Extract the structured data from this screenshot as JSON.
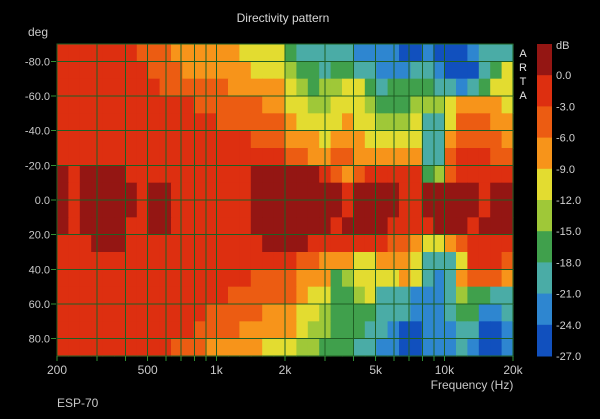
{
  "chart_data": {
    "type": "heatmap",
    "title": "Directivity pattern",
    "xlabel": "Frequency (Hz)",
    "ylabel": "deg",
    "device_label": "ESP-70",
    "watermark": "ARTA",
    "freq_range": [
      200,
      20000
    ],
    "angle_range": [
      -90,
      90
    ],
    "x_scale": "log",
    "grid": true,
    "colors": {
      "background": "#000000",
      "grid": "#1f5f23",
      "tick": "#2f9132",
      "text": "#c9c9c9",
      "plot_border": "#1f5f23"
    },
    "x_gridlines": [
      300,
      400,
      500,
      600,
      700,
      800,
      900,
      1000,
      2000,
      3000,
      4000,
      5000,
      6000,
      7000,
      8000,
      9000,
      10000
    ],
    "x_tick_marks": [
      200,
      300,
      400,
      500,
      600,
      700,
      800,
      900,
      1000,
      2000,
      3000,
      4000,
      5000,
      6000,
      7000,
      8000,
      9000,
      10000,
      20000
    ],
    "x_ticks": [
      {
        "f": 200,
        "label": "200"
      },
      {
        "f": 500,
        "label": "500"
      },
      {
        "f": 1000,
        "label": "1k"
      },
      {
        "f": 2000,
        "label": "2k"
      },
      {
        "f": 5000,
        "label": "5k"
      },
      {
        "f": 10000,
        "label": "10k"
      },
      {
        "f": 20000,
        "label": "20k"
      }
    ],
    "y_gridlines": [
      -80,
      -60,
      -40,
      -20,
      0,
      20,
      40,
      60,
      80
    ],
    "y_ticks": [
      {
        "deg": -80,
        "label": "-80.0"
      },
      {
        "deg": -60,
        "label": "-60.0"
      },
      {
        "deg": -40,
        "label": "-40.0"
      },
      {
        "deg": -20,
        "label": "-20.0"
      },
      {
        "deg": 0,
        "label": "0.0"
      },
      {
        "deg": 20,
        "label": "20.0"
      },
      {
        "deg": 40,
        "label": "40.0"
      },
      {
        "deg": 60,
        "label": "60.0"
      },
      {
        "deg": 80,
        "label": "80.0"
      }
    ],
    "legend": {
      "title": "dB",
      "position": "right",
      "tick_labels": [
        "0.0",
        "-3.0",
        "-6.0",
        "-9.0",
        "-12.0",
        "-15.0",
        "-18.0",
        "-21.0",
        "-24.0",
        "-27.0"
      ]
    },
    "bands": [
      {
        "db": "above 0",
        "color": "#941613"
      },
      {
        "db": "0 to -3",
        "color": "#dd2f10"
      },
      {
        "db": "-3 to -6",
        "color": "#ec5c12"
      },
      {
        "db": "-6 to -9",
        "color": "#f7941a"
      },
      {
        "db": "-9 to -12",
        "color": "#e3dc30"
      },
      {
        "db": "-12 to -15",
        "color": "#9fc838"
      },
      {
        "db": "-15 to -18",
        "color": "#40a04c"
      },
      {
        "db": "-18 to -21",
        "color": "#4aaca6"
      },
      {
        "db": "-21 to -24",
        "color": "#2e86d0"
      },
      {
        "db": "-24 to -27",
        "color": "#1150be"
      }
    ],
    "matrix_note": "rows: angle -90(top) to +90(bottom) in 10deg steps; cols: 200Hz to 20kHz log-spaced (40 bins); digit = band index into bands[]",
    "matrix": [
      "1111111222333333444467777788889989998777",
      "1111111122233333344456676677888778999764",
      "1111111112222223333345655446766667787644",
      "1111111111112222223344554445666555433334",
      "1111111111111122222234444344555477422233",
      "1111111111111111122233343334444477322223",
      "1111111111111111111122332233333377211122",
      "0100001111111111100000012321111165211111",
      "0100000100111111100000000100001100000100",
      "0100000100111111100000000100001100000100",
      "0100001100111111100000001000011110001000",
      "1110001111111111110000111111122344321111",
      "1111111111111111111112233344333477741112",
      "1111111111111111122223336544443478732223",
      "1111111111111112222223446654777888756677",
      "1111111111111222223334456666777888766887",
      "1111111111112222333334556667789988877998",
      "1111111111222333334445566677889988878998"
    ]
  }
}
